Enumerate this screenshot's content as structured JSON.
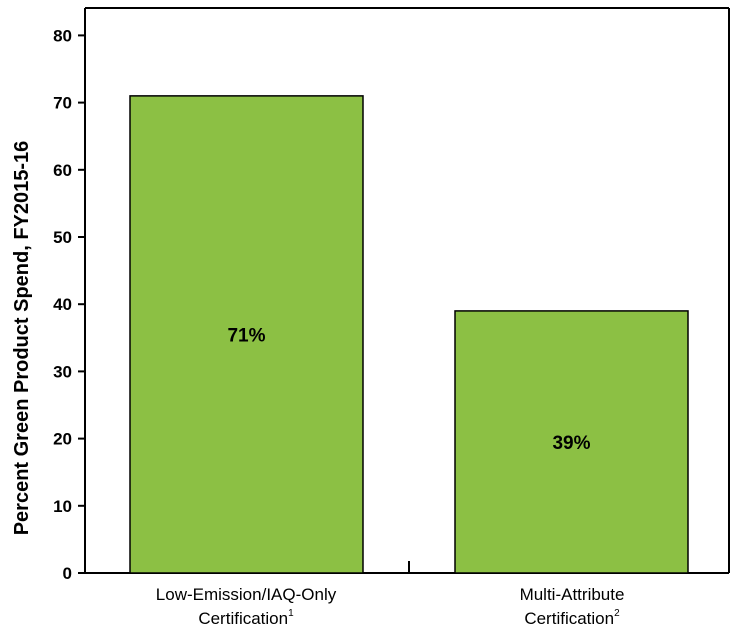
{
  "chart_data": {
    "type": "bar",
    "title": "",
    "xlabel": "",
    "ylabel": "Percent Green Product Spend, FY2015-16",
    "ylim": [
      0,
      80
    ],
    "yticks": [
      0,
      10,
      20,
      30,
      40,
      50,
      60,
      70,
      80
    ],
    "grid": false,
    "legend": "none",
    "bar_color": "#8cc044",
    "categories": [
      {
        "line1": "Low-Emission/IAQ-Only",
        "line2": "Certification",
        "footnote": "1"
      },
      {
        "line1": "Multi-Attribute",
        "line2": "Certification",
        "footnote": "2"
      }
    ],
    "values": [
      71,
      39
    ],
    "data_labels": [
      "71%",
      "39%"
    ]
  }
}
